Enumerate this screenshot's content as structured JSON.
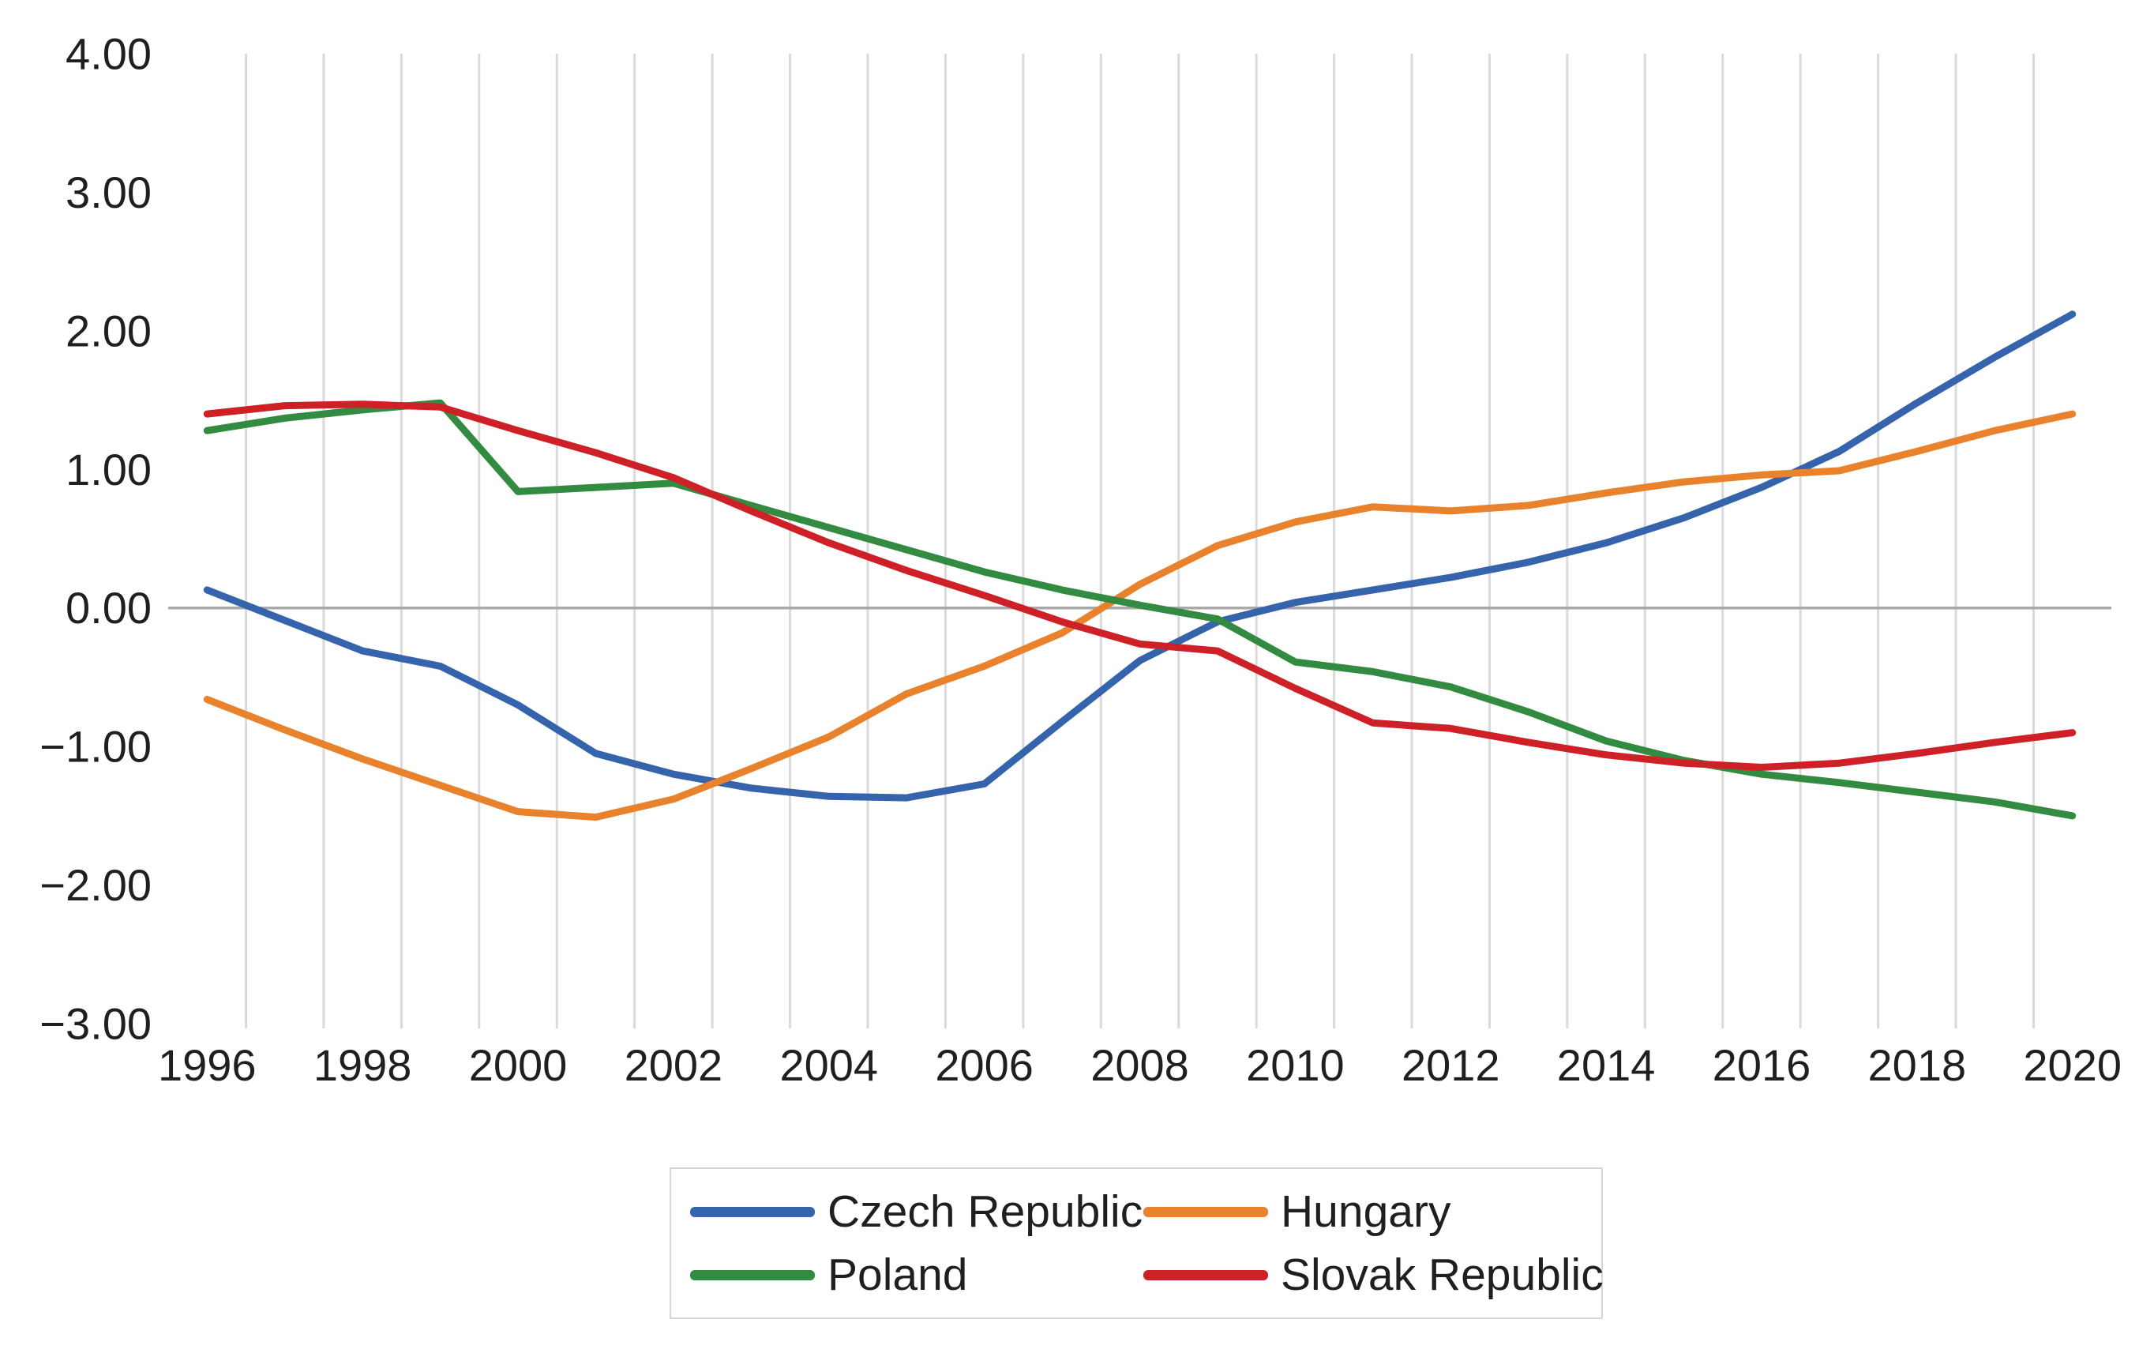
{
  "chart_data": {
    "type": "line",
    "title": "",
    "xlabel": "",
    "ylabel": "",
    "x": [
      1996,
      1997,
      1998,
      1999,
      2000,
      2001,
      2002,
      2003,
      2004,
      2005,
      2006,
      2007,
      2008,
      2009,
      2010,
      2011,
      2012,
      2013,
      2014,
      2015,
      2016,
      2017,
      2018,
      2019,
      2020
    ],
    "x_tick_labels": [
      "1996",
      "1998",
      "2000",
      "2002",
      "2004",
      "2006",
      "2008",
      "2010",
      "2012",
      "2014",
      "2016",
      "2018",
      "2020"
    ],
    "y_ticks": [
      {
        "label": "4.00",
        "value": 4
      },
      {
        "label": "3.00",
        "value": 3
      },
      {
        "label": "2.00",
        "value": 2
      },
      {
        "label": "1.00",
        "value": 1
      },
      {
        "label": "0.00",
        "value": 0
      },
      {
        "label": "−1.00",
        "value": -1
      },
      {
        "label": "−2.00",
        "value": -2
      },
      {
        "label": "−3.00",
        "value": -3
      }
    ],
    "ylim": [
      -3,
      4
    ],
    "grid": "vertical-only-between-categories",
    "zero_line": true,
    "legend_position": "bottom-center",
    "series": [
      {
        "name": "Czech Republic",
        "color": "#3564AD",
        "values": [
          0.13,
          -0.09,
          -0.31,
          -0.42,
          -0.7,
          -1.05,
          -1.2,
          -1.3,
          -1.36,
          -1.37,
          -1.27,
          -0.82,
          -0.38,
          -0.1,
          0.04,
          0.13,
          0.22,
          0.33,
          0.47,
          0.65,
          0.87,
          1.13,
          1.48,
          1.81,
          2.12
        ]
      },
      {
        "name": "Hungary",
        "color": "#E8822D",
        "values": [
          -0.66,
          -0.88,
          -1.09,
          -1.28,
          -1.47,
          -1.51,
          -1.38,
          -1.16,
          -0.93,
          -0.62,
          -0.42,
          -0.18,
          0.17,
          0.45,
          0.62,
          0.73,
          0.7,
          0.74,
          0.83,
          0.91,
          0.96,
          0.99,
          1.13,
          1.28,
          1.4
        ]
      },
      {
        "name": "Poland",
        "color": "#338B41",
        "values": [
          1.28,
          1.37,
          1.43,
          1.48,
          0.84,
          0.87,
          0.9,
          0.74,
          0.58,
          0.42,
          0.26,
          0.13,
          0.02,
          -0.08,
          -0.39,
          -0.46,
          -0.57,
          -0.75,
          -0.96,
          -1.1,
          -1.2,
          -1.26,
          -1.33,
          -1.4,
          -1.5
        ]
      },
      {
        "name": "Slovak Republic",
        "color": "#CE2127",
        "values": [
          1.4,
          1.46,
          1.47,
          1.45,
          1.28,
          1.12,
          0.94,
          0.7,
          0.47,
          0.27,
          0.09,
          -0.1,
          -0.26,
          -0.31,
          -0.58,
          -0.83,
          -0.87,
          -0.97,
          -1.06,
          -1.12,
          -1.15,
          -1.12,
          -1.05,
          -0.97,
          -0.9
        ]
      }
    ]
  },
  "colors": {
    "background": "#FFFFFF",
    "gridline": "#DADADA",
    "zero_line": "#A9A9A9",
    "tick_text": "#1F1F1F",
    "legend_border": "#D6D6D6"
  }
}
